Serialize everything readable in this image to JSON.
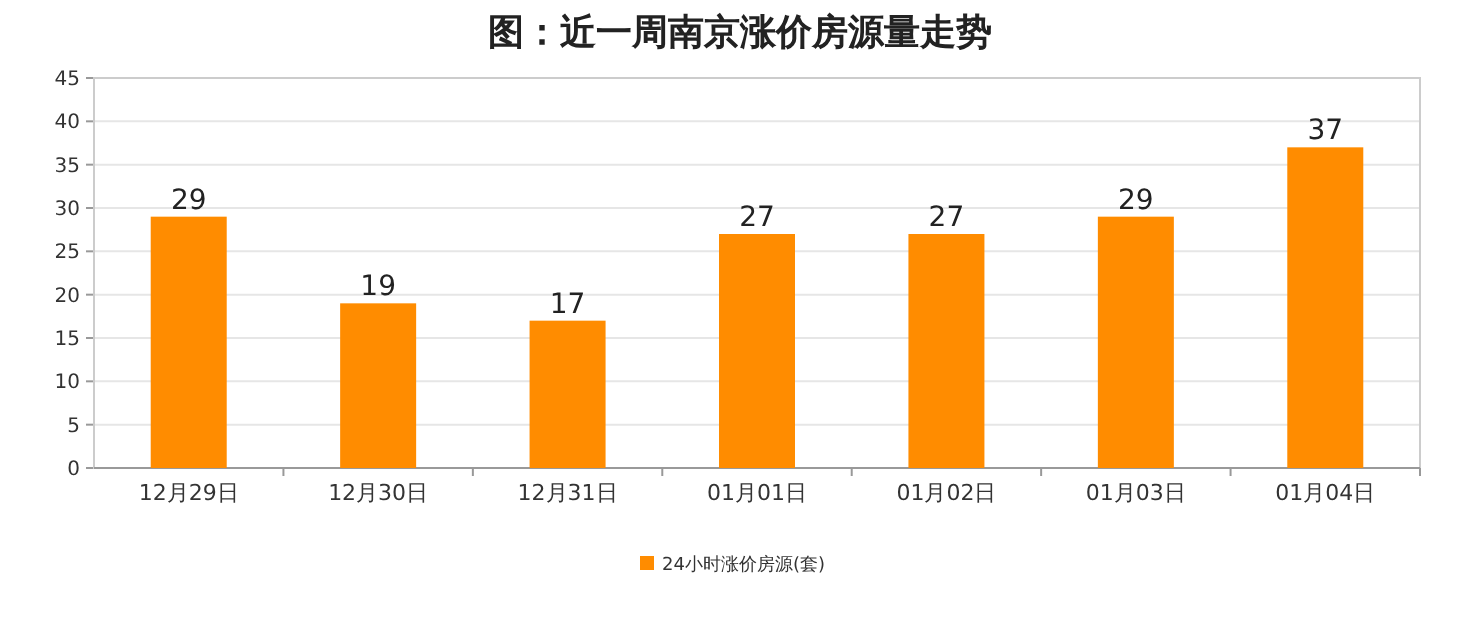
{
  "chart_data": {
    "type": "bar",
    "title": "图：近一周南京涨价房源量走势",
    "categories": [
      "12月29日",
      "12月30日",
      "12月31日",
      "01月01日",
      "01月02日",
      "01月03日",
      "01月04日"
    ],
    "series": [
      {
        "name": "24小时涨价房源(套)",
        "color": "#ff8c00",
        "values": [
          29,
          19,
          17,
          27,
          27,
          29,
          37
        ]
      }
    ],
    "ylim": [
      0,
      45
    ],
    "yticks": [
      0,
      5,
      10,
      15,
      20,
      25,
      30,
      35,
      40,
      45
    ],
    "grid": "y",
    "legend": "bottom",
    "data_labels": true
  }
}
